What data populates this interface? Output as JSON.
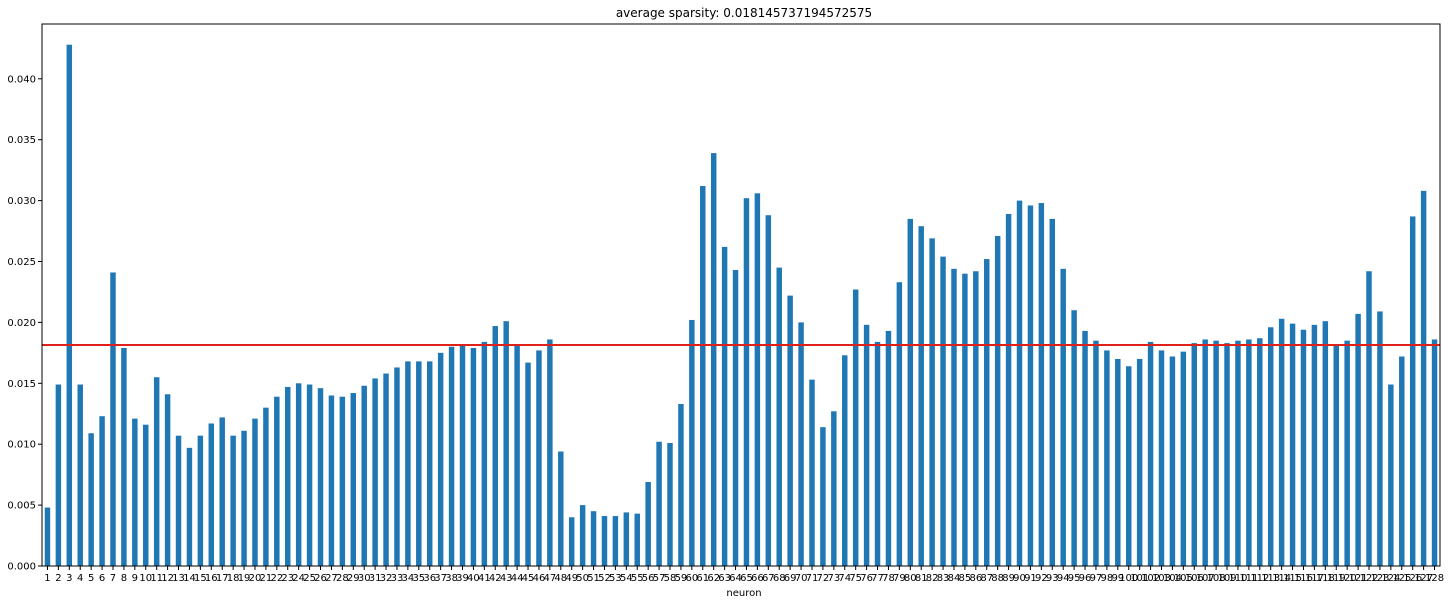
{
  "chart_data": {
    "type": "bar",
    "title": "average sparsity: 0.018145737194572575",
    "xlabel": "neuron",
    "ylabel": "",
    "ylim": [
      0,
      0.0445
    ],
    "yticks": [
      0.0,
      0.005,
      0.01,
      0.015,
      0.02,
      0.025,
      0.03,
      0.035,
      0.04
    ],
    "ytick_labels": [
      "0.000",
      "0.005",
      "0.010",
      "0.015",
      "0.020",
      "0.025",
      "0.030",
      "0.035",
      "0.040"
    ],
    "bar_color": "#1f77b4",
    "reference_line": {
      "value": 0.018145737194572575,
      "color": "#e0201b"
    },
    "grid": false,
    "categories": [
      "1",
      "2",
      "3",
      "4",
      "5",
      "6",
      "7",
      "8",
      "9",
      "10",
      "11",
      "12",
      "13",
      "14",
      "15",
      "16",
      "17",
      "18",
      "19",
      "20",
      "21",
      "22",
      "23",
      "24",
      "25",
      "26",
      "27",
      "28",
      "29",
      "30",
      "31",
      "32",
      "33",
      "34",
      "35",
      "36",
      "37",
      "38",
      "39",
      "40",
      "41",
      "42",
      "43",
      "44",
      "45",
      "46",
      "47",
      "48",
      "49",
      "50",
      "51",
      "52",
      "53",
      "54",
      "55",
      "56",
      "57",
      "58",
      "59",
      "60",
      "61",
      "62",
      "63",
      "64",
      "65",
      "66",
      "67",
      "68",
      "69",
      "70",
      "71",
      "72",
      "73",
      "74",
      "75",
      "76",
      "77",
      "78",
      "79",
      "80",
      "81",
      "82",
      "83",
      "84",
      "85",
      "86",
      "87",
      "88",
      "89",
      "90",
      "91",
      "92",
      "93",
      "94",
      "95",
      "96",
      "97",
      "98",
      "99",
      "100",
      "101",
      "102",
      "103",
      "104",
      "105",
      "106",
      "107",
      "108",
      "109",
      "110",
      "111",
      "112",
      "113",
      "114",
      "115",
      "116",
      "117",
      "118",
      "119",
      "120",
      "121",
      "122",
      "123",
      "124",
      "125",
      "126",
      "127",
      "128"
    ],
    "values": [
      0.0048,
      0.0149,
      0.0428,
      0.0149,
      0.0109,
      0.0123,
      0.0241,
      0.0179,
      0.0121,
      0.0116,
      0.0155,
      0.0141,
      0.0107,
      0.0097,
      0.0107,
      0.0117,
      0.0122,
      0.0107,
      0.0111,
      0.0121,
      0.013,
      0.0139,
      0.0147,
      0.015,
      0.0149,
      0.0146,
      0.014,
      0.0139,
      0.0142,
      0.0148,
      0.0154,
      0.0158,
      0.0163,
      0.0168,
      0.0168,
      0.0168,
      0.0175,
      0.018,
      0.0181,
      0.0179,
      0.0184,
      0.0197,
      0.0201,
      0.0182,
      0.0167,
      0.0177,
      0.0186,
      0.0094,
      0.004,
      0.005,
      0.0045,
      0.0041,
      0.0041,
      0.0044,
      0.0043,
      0.0069,
      0.0102,
      0.0101,
      0.0133,
      0.0202,
      0.0312,
      0.0339,
      0.0262,
      0.0243,
      0.0302,
      0.0306,
      0.0288,
      0.0245,
      0.0222,
      0.02,
      0.0153,
      0.0114,
      0.0127,
      0.0173,
      0.0227,
      0.0198,
      0.0184,
      0.0193,
      0.0233,
      0.0285,
      0.0279,
      0.0269,
      0.0254,
      0.0244,
      0.024,
      0.0242,
      0.0252,
      0.0271,
      0.0289,
      0.03,
      0.0296,
      0.0298,
      0.0285,
      0.0244,
      0.021,
      0.0193,
      0.0185,
      0.0177,
      0.017,
      0.0164,
      0.017,
      0.0184,
      0.0177,
      0.0172,
      0.0176,
      0.0183,
      0.0186,
      0.0185,
      0.0183,
      0.0185,
      0.0186,
      0.0187,
      0.0196,
      0.0203,
      0.0199,
      0.0194,
      0.0198,
      0.0201,
      0.0182,
      0.0185,
      0.0207,
      0.0242,
      0.0209,
      0.0149,
      0.0172,
      0.0287,
      0.0308,
      0.0186
    ]
  }
}
